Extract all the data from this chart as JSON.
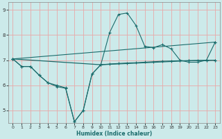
{
  "xlabel": "Humidex (Indice chaleur)",
  "bg_color": "#cceaea",
  "grid_color": "#e8a8a8",
  "line_color": "#1a6b6b",
  "xlim": [
    -0.5,
    23.5
  ],
  "ylim": [
    4.5,
    9.3
  ],
  "yticks": [
    5,
    6,
    7,
    8,
    9
  ],
  "xticks": [
    0,
    1,
    2,
    3,
    4,
    5,
    6,
    7,
    8,
    9,
    10,
    11,
    12,
    13,
    14,
    15,
    16,
    17,
    18,
    19,
    20,
    21,
    22,
    23
  ],
  "curve1_x": [
    0,
    1,
    2,
    3,
    4,
    5,
    6,
    7,
    8,
    9,
    10,
    11,
    12,
    13,
    14,
    15,
    16,
    17,
    18,
    19,
    20,
    21,
    22,
    23
  ],
  "curve1_y": [
    7.05,
    6.75,
    6.75,
    6.4,
    6.1,
    6.0,
    5.9,
    4.55,
    5.0,
    6.45,
    6.82,
    8.1,
    8.82,
    8.88,
    8.38,
    7.55,
    7.5,
    7.62,
    7.45,
    7.0,
    6.92,
    6.92,
    7.0,
    7.72
  ],
  "curve2_x": [
    0,
    1,
    2,
    3,
    4,
    5,
    6,
    7,
    8,
    9,
    10,
    11,
    12,
    13,
    14,
    15,
    16,
    17,
    18,
    19,
    20,
    21,
    22,
    23
  ],
  "curve2_y": [
    7.05,
    6.75,
    6.75,
    6.4,
    6.1,
    5.95,
    5.88,
    4.55,
    5.0,
    6.45,
    6.82,
    6.85,
    6.87,
    6.89,
    6.9,
    6.92,
    6.94,
    6.96,
    6.97,
    6.98,
    6.98,
    6.99,
    6.99,
    7.0
  ],
  "curve3_x": [
    0,
    23
  ],
  "curve3_y": [
    7.05,
    7.72
  ],
  "curve4_x": [
    0,
    10,
    20,
    23
  ],
  "curve4_y": [
    7.05,
    6.82,
    6.98,
    7.0
  ]
}
